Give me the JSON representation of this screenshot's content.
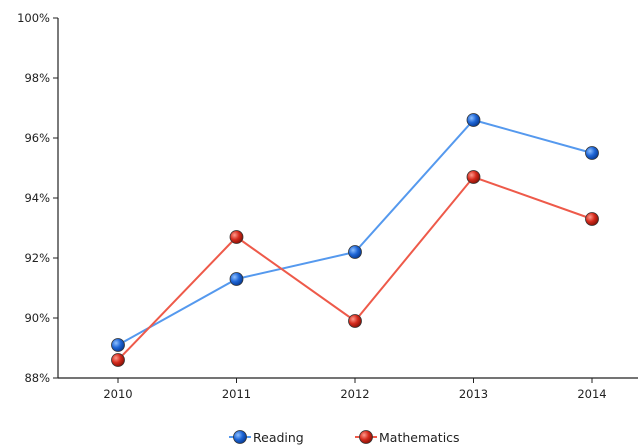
{
  "chart_data": {
    "type": "line",
    "title": "",
    "xlabel": "",
    "ylabel": "",
    "categories": [
      "2010",
      "2011",
      "2012",
      "2013",
      "2014"
    ],
    "ylim": [
      0.88,
      1.0
    ],
    "y_ticks": [
      {
        "value": 0.88,
        "label": "88%"
      },
      {
        "value": 0.9,
        "label": "90%"
      },
      {
        "value": 0.92,
        "label": "92%"
      },
      {
        "value": 0.94,
        "label": "94%"
      },
      {
        "value": 0.96,
        "label": "96%"
      },
      {
        "value": 0.98,
        "label": "98%"
      },
      {
        "value": 1.0,
        "label": "100%"
      }
    ],
    "grid": false,
    "legend": {
      "placement": "bottom-center"
    },
    "series": [
      {
        "name": "Reading",
        "values": [
          0.891,
          0.913,
          0.922,
          0.966,
          0.955
        ],
        "line_color": "#5599ee",
        "marker_color": "#1a60d0"
      },
      {
        "name": "Mathematics",
        "values": [
          0.886,
          0.927,
          0.899,
          0.947,
          0.933
        ],
        "line_color": "#ee5a4a",
        "marker_color": "#d42a1c"
      }
    ]
  }
}
